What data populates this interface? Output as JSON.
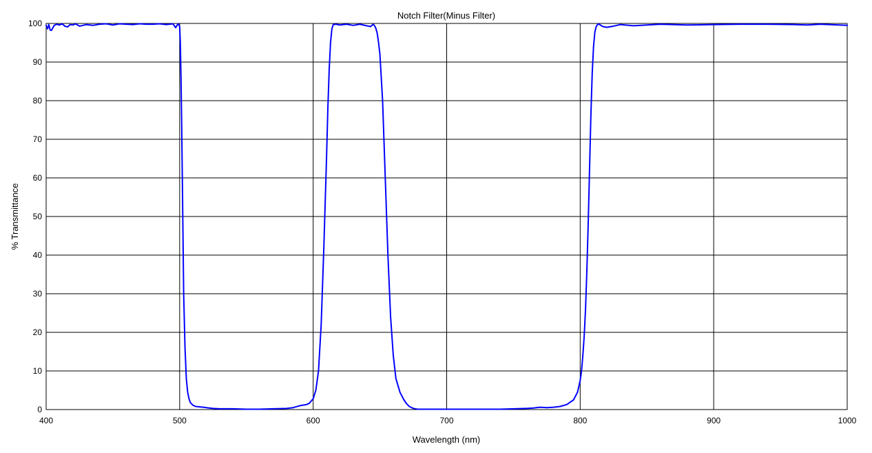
{
  "chart_data": {
    "type": "line",
    "title": "Notch Filter(Minus Filter)",
    "xlabel": "Wavelength (nm)",
    "ylabel": "% Transmittance",
    "xlim": [
      400,
      1000
    ],
    "ylim": [
      0,
      100
    ],
    "xticks": [
      "400",
      "500",
      "600",
      "700",
      "800",
      "900",
      "1000"
    ],
    "yticks": [
      "0",
      "10",
      "20",
      "30",
      "40",
      "50",
      "60",
      "70",
      "80",
      "90",
      "100"
    ],
    "grid": true,
    "line_color": "#0000ff",
    "grid_color": "#000000",
    "series": [
      {
        "x": [
          400,
          401,
          402,
          403,
          404,
          406,
          408,
          410,
          412,
          414,
          416,
          418,
          420,
          422,
          425,
          430,
          435,
          440,
          445,
          450,
          455,
          460,
          465,
          470,
          475,
          480,
          485,
          490,
          495,
          496,
          497,
          498,
          499,
          500,
          500.5,
          501,
          501.5,
          502,
          502.5,
          503,
          504,
          505,
          506,
          507,
          508,
          510,
          512,
          515,
          518,
          520,
          525,
          530,
          540,
          550,
          560,
          570,
          580,
          585,
          590,
          595,
          597,
          600,
          602,
          604,
          606,
          608,
          610,
          611,
          612,
          613,
          614,
          615,
          617,
          620,
          625,
          630,
          635,
          640,
          643,
          645,
          646,
          647,
          648,
          649,
          650,
          652,
          654,
          656,
          658,
          660,
          662,
          665,
          668,
          670,
          672,
          675,
          678,
          680,
          690,
          700,
          720,
          740,
          760,
          765,
          770,
          775,
          780,
          785,
          790,
          795,
          798,
          800,
          801,
          802,
          803,
          804,
          805,
          806,
          807,
          808,
          809,
          810,
          811,
          812,
          813,
          814,
          815,
          817,
          820,
          825,
          830,
          840,
          850,
          860,
          880,
          900,
          920,
          940,
          960,
          970,
          980,
          1000
        ],
        "y": [
          99.5,
          98.6,
          99.7,
          98.3,
          98.2,
          99.5,
          99.8,
          99.6,
          99.9,
          99.3,
          99.1,
          99.7,
          99.6,
          99.9,
          99.3,
          99.7,
          99.5,
          99.8,
          99.9,
          99.6,
          99.9,
          99.8,
          99.7,
          99.9,
          99.8,
          99.8,
          99.9,
          99.7,
          99.9,
          99.4,
          98.9,
          99.5,
          99.9,
          99.2,
          95,
          86,
          74,
          60,
          45,
          30,
          16,
          8,
          4.5,
          2.8,
          1.8,
          1.1,
          0.8,
          0.7,
          0.6,
          0.5,
          0.3,
          0.2,
          0.2,
          0.1,
          0.1,
          0.2,
          0.3,
          0.5,
          1.0,
          1.3,
          1.6,
          2.8,
          5,
          10,
          22,
          42,
          65,
          78,
          88,
          95,
          98.5,
          99.7,
          99.8,
          99.6,
          99.8,
          99.5,
          99.8,
          99.4,
          99.2,
          99.8,
          99.4,
          98.7,
          97.4,
          95,
          92,
          80,
          60,
          40,
          24,
          14,
          8,
          4.5,
          2.5,
          1.5,
          0.8,
          0.3,
          0.1,
          0.1,
          0.1,
          0.1,
          0.1,
          0.1,
          0.3,
          0.4,
          0.6,
          0.5,
          0.6,
          0.8,
          1.3,
          2.5,
          4.5,
          7.5,
          10,
          14,
          19,
          26,
          36,
          48,
          62,
          76,
          87,
          94,
          97.8,
          99.2,
          99.7,
          99.9,
          99.6,
          99.2,
          99.0,
          99.3,
          99.7,
          99.4,
          99.6,
          99.8,
          99.6,
          99.7,
          99.8,
          99.8,
          99.7,
          99.6,
          99.8,
          99.5
        ]
      }
    ]
  }
}
